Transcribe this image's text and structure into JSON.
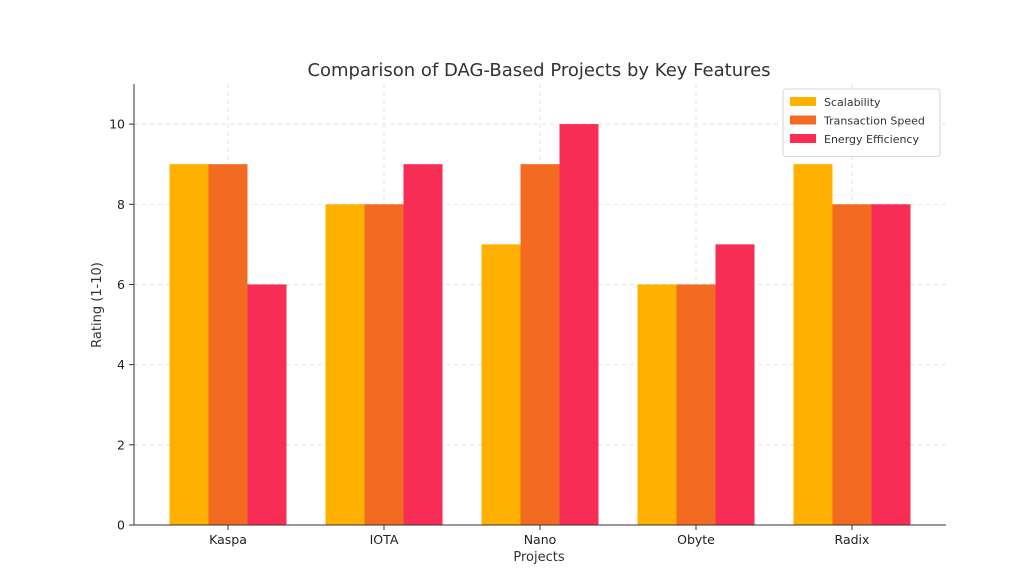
{
  "chart_data": {
    "type": "bar",
    "title": "Comparison of DAG-Based Projects by Key Features",
    "xlabel": "Projects",
    "ylabel": "Rating (1-10)",
    "categories": [
      "Kaspa",
      "IOTA",
      "Nano",
      "Obyte",
      "Radix"
    ],
    "series": [
      {
        "name": "Scalability",
        "color": "#FFB000",
        "values": [
          9,
          8,
          7,
          6,
          9
        ]
      },
      {
        "name": "Transaction Speed",
        "color": "#F26B21",
        "values": [
          9,
          8,
          9,
          6,
          8
        ]
      },
      {
        "name": "Energy Efficiency",
        "color": "#F72D55",
        "values": [
          6,
          9,
          10,
          7,
          8
        ]
      }
    ],
    "ylim": [
      0,
      11
    ],
    "yticks": [
      0,
      2,
      4,
      6,
      8,
      10
    ],
    "grid": true,
    "legend_position": "top-right"
  }
}
